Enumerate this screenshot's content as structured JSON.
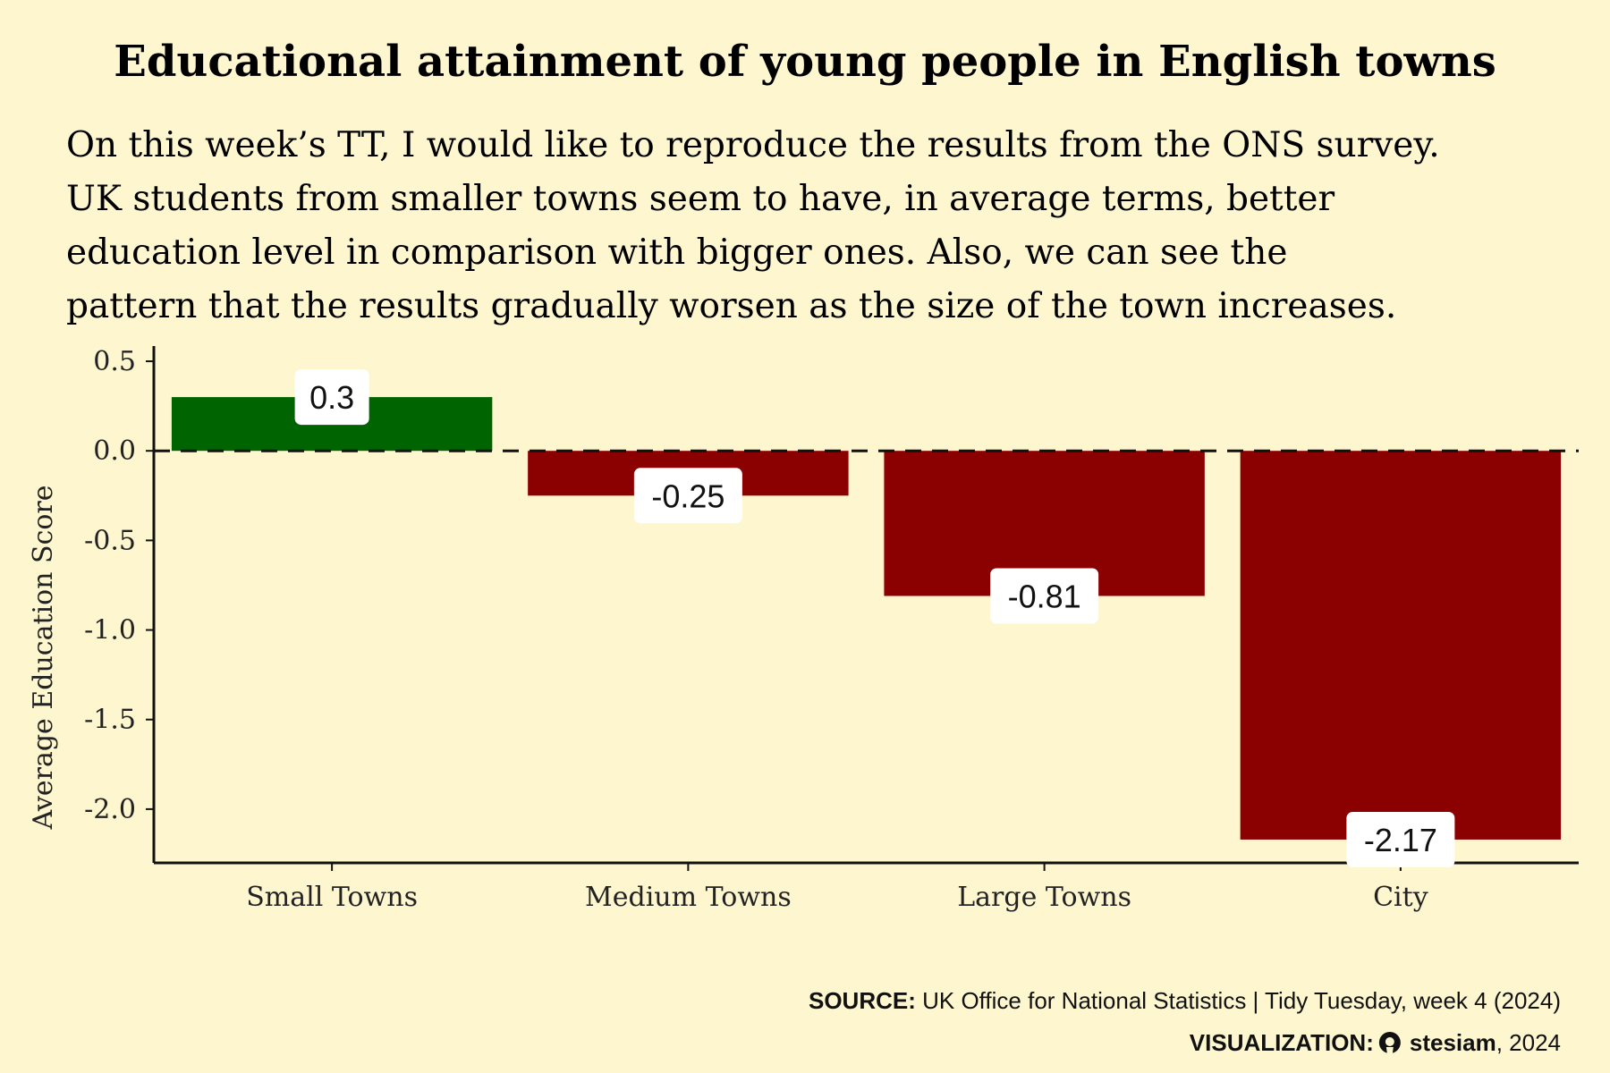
{
  "chart_data": {
    "type": "bar",
    "title": "Educational attainment of young people in English towns",
    "subtitle_lines": [
      "On this week’s TT, I would like to reproduce the results from the ONS survey.",
      "UK students from smaller towns seem to have, in average terms, better",
      "education level in comparison with bigger ones. Also, we can see the",
      "pattern that the results gradually worsen as the size of the town increases."
    ],
    "categories": [
      "Small Towns",
      "Medium Towns",
      "Large Towns",
      "City"
    ],
    "values": [
      0.3,
      -0.25,
      -0.81,
      -2.17
    ],
    "data_labels": [
      "0.3",
      "-0.25",
      "-0.81",
      "-2.17"
    ],
    "ylabel": "Average Education Score",
    "xlabel": "",
    "ylim": [
      -2.3,
      0.57
    ],
    "yticks": [
      0.5,
      0.0,
      -0.5,
      -1.0,
      -1.5,
      -2.0
    ],
    "ytick_labels": [
      "0.5",
      "0.0",
      "-0.5",
      "-1.0",
      "-1.5",
      "-2.0"
    ],
    "reference_line": 0,
    "grid": false,
    "legend": "none",
    "colors": {
      "positive": "#006400",
      "negative": "#8b0000",
      "background": "#fdf6cf"
    }
  },
  "caption": {
    "source_label": "SOURCE:",
    "source_text": " UK Office for National Statistics | Tidy Tuesday, week 4 (2024)",
    "viz_label": "VISUALIZATION:",
    "viz_icon": "github-icon",
    "viz_author": "stesiam",
    "viz_year": ", 2024"
  }
}
